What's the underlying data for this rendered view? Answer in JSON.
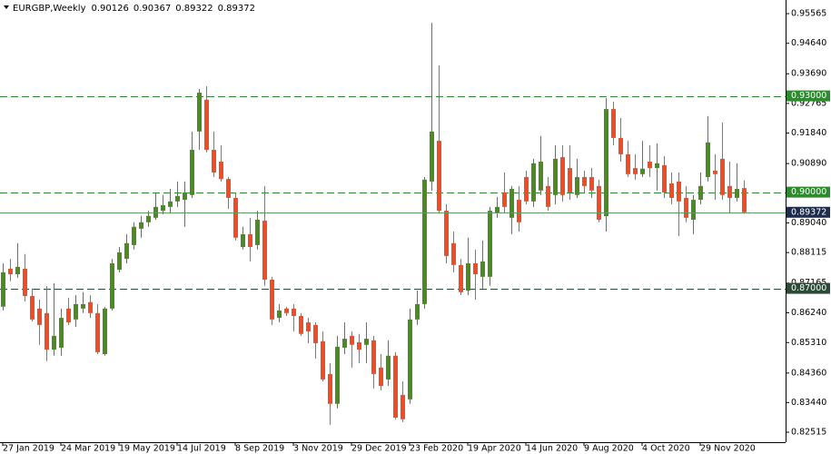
{
  "chart_data": {
    "type": "candlestick",
    "symbol": "EURGBP,Weekly",
    "categories": [
      "27 Jan 2019",
      null,
      null,
      null,
      null,
      null,
      null,
      null,
      "24 Mar 2019",
      null,
      null,
      null,
      null,
      null,
      null,
      null,
      "19 May 2019",
      null,
      null,
      null,
      null,
      null,
      null,
      null,
      "14 Jul 2019",
      null,
      null,
      null,
      null,
      null,
      null,
      null,
      "8 Sep 2019",
      null,
      null,
      null,
      null,
      null,
      null,
      null,
      "3 Nov 2019",
      null,
      null,
      null,
      null,
      null,
      null,
      null,
      "29 Dec 2019",
      null,
      null,
      null,
      null,
      null,
      null,
      null,
      "23 Feb 2020",
      null,
      null,
      null,
      null,
      null,
      null,
      null,
      "19 Apr 2020",
      null,
      null,
      null,
      null,
      null,
      null,
      null,
      "14 Jun 2020",
      null,
      null,
      null,
      null,
      null,
      null,
      null,
      "9 Aug 2020",
      null,
      null,
      null,
      null,
      null,
      null,
      null,
      "4 Oct 2020",
      null,
      null,
      null,
      null,
      null,
      null,
      null,
      "29 Nov 2020",
      null,
      null,
      null,
      null,
      null,
      null
    ],
    "open": [
      0.8643,
      0.8761,
      0.8744,
      0.8761,
      0.8676,
      0.8637,
      0.8623,
      0.8509,
      0.8515,
      0.8637,
      0.8603,
      0.8637,
      0.8657,
      0.8623,
      0.8495,
      0.8637,
      0.8758,
      0.8792,
      0.8835,
      0.8886,
      0.8906,
      0.892,
      0.8942,
      0.8954,
      0.8971,
      0.8976,
      0.8991,
      0.9189,
      0.9288,
      0.9132,
      0.9095,
      0.9041,
      0.8982,
      0.8829,
      0.8869,
      0.8835,
      0.8911,
      0.8727,
      0.8608,
      0.8637,
      0.8637,
      0.8614,
      0.8594,
      0.8586,
      0.8535,
      0.8433,
      0.834,
      0.8515,
      0.8552,
      0.8532,
      0.8524,
      0.8538,
      0.8453,
      0.8416,
      0.849,
      0.8368,
      0.8354,
      0.8603,
      0.8651,
      0.9033,
      0.916,
      0.8942,
      0.8841,
      0.8773,
      0.8693,
      0.8778,
      0.8736,
      0.8736,
      0.8934,
      0.8999,
      0.892,
      0.8976,
      0.9047,
      0.8971,
      0.9005,
      0.9019,
      0.8991,
      0.9109,
      0.9075,
      0.8991,
      0.9047,
      0.9047,
      0.9019,
      0.8925,
      0.9259,
      0.9169,
      0.9118,
      0.9075,
      0.9056,
      0.9095,
      0.9075,
      0.9084,
      0.9027,
      0.9033,
      0.8982,
      0.8914,
      0.8976,
      0.9047,
      0.9067,
      0.9104,
      0.9019,
      0.8982,
      0.90126
    ],
    "high": [
      0.8778,
      0.8792,
      0.8841,
      0.8807,
      0.8699,
      0.8665,
      0.8707,
      0.8716,
      0.8637,
      0.8671,
      0.8679,
      0.8688,
      0.8679,
      0.8651,
      0.8642,
      0.8792,
      0.8829,
      0.8869,
      0.8906,
      0.8926,
      0.8942,
      0.8999,
      0.8991,
      0.901,
      0.9033,
      0.9033,
      0.9189,
      0.9322,
      0.933,
      0.9189,
      0.9146,
      0.9047,
      0.8999,
      0.8892,
      0.892,
      0.8942,
      0.9019,
      0.8736,
      0.8651,
      0.8642,
      0.8651,
      0.8623,
      0.8608,
      0.8594,
      0.8566,
      0.8467,
      0.8552,
      0.8594,
      0.8566,
      0.8558,
      0.8594,
      0.8552,
      0.8495,
      0.8538,
      0.8501,
      0.841,
      0.8637,
      0.8693,
      0.9047,
      0.9528,
      0.9395,
      0.8962,
      0.8877,
      0.8792,
      0.8858,
      0.8821,
      0.8849,
      0.8954,
      0.8985,
      0.9061,
      0.9019,
      0.9019,
      0.9067,
      0.9104,
      0.9175,
      0.9047,
      0.9146,
      0.9146,
      0.9146,
      0.9104,
      0.9067,
      0.9075,
      0.9039,
      0.9293,
      0.9282,
      0.9231,
      0.916,
      0.9118,
      0.916,
      0.9146,
      0.9152,
      0.9112,
      0.9061,
      0.9061,
      0.9019,
      0.8991,
      0.9061,
      0.9237,
      0.9118,
      0.9217,
      0.9095,
      0.909,
      0.90367
    ],
    "low": [
      0.8631,
      0.8722,
      0.8733,
      0.8659,
      0.8597,
      0.8524,
      0.8473,
      0.849,
      0.849,
      0.8586,
      0.858,
      0.8623,
      0.8608,
      0.8495,
      0.849,
      0.8631,
      0.875,
      0.8778,
      0.8821,
      0.8858,
      0.8892,
      0.8914,
      0.8931,
      0.8934,
      0.8954,
      0.8892,
      0.8982,
      0.9132,
      0.9124,
      0.9047,
      0.9033,
      0.8948,
      0.8849,
      0.8821,
      0.8784,
      0.8821,
      0.8708,
      0.8586,
      0.8594,
      0.8614,
      0.8566,
      0.8552,
      0.8529,
      0.8481,
      0.841,
      0.8275,
      0.8326,
      0.8495,
      0.8453,
      0.8467,
      0.8467,
      0.8388,
      0.8382,
      0.8396,
      0.8292,
      0.8283,
      0.834,
      0.8586,
      0.8637,
      0.9005,
      0.8934,
      0.8778,
      0.875,
      0.8679,
      0.8679,
      0.8665,
      0.8699,
      0.8708,
      0.892,
      0.8934,
      0.8869,
      0.8877,
      0.8962,
      0.8954,
      0.8991,
      0.8942,
      0.8962,
      0.8971,
      0.8976,
      0.8982,
      0.8999,
      0.8982,
      0.8906,
      0.8877,
      0.9146,
      0.9095,
      0.9047,
      0.9039,
      0.9047,
      0.9047,
      0.9005,
      0.8982,
      0.8962,
      0.8863,
      0.8906,
      0.8869,
      0.8962,
      0.9033,
      0.8976,
      0.8976,
      0.8934,
      0.8971,
      0.89322
    ],
    "close": [
      0.875,
      0.8744,
      0.8767,
      0.8676,
      0.8603,
      0.8586,
      0.8509,
      0.8552,
      0.8608,
      0.8594,
      0.8651,
      0.8651,
      0.8623,
      0.8501,
      0.8637,
      0.8778,
      0.8812,
      0.8841,
      0.8892,
      0.8906,
      0.8926,
      0.8954,
      0.8959,
      0.8971,
      0.8988,
      0.8999,
      0.9132,
      0.931,
      0.9132,
      0.9061,
      0.9041,
      0.8982,
      0.8858,
      0.8869,
      0.8829,
      0.8914,
      0.8727,
      0.8603,
      0.8631,
      0.8623,
      0.8614,
      0.8558,
      0.8566,
      0.8529,
      0.8416,
      0.834,
      0.8518,
      0.8543,
      0.8524,
      0.8509,
      0.8543,
      0.8433,
      0.8396,
      0.849,
      0.8297,
      0.8292,
      0.8603,
      0.8651,
      0.9039,
      0.9189,
      0.8942,
      0.8801,
      0.8773,
      0.8688,
      0.8778,
      0.8744,
      0.8784,
      0.8942,
      0.8954,
      0.8954,
      0.901,
      0.8906,
      0.8971,
      0.909,
      0.9095,
      0.8954,
      0.9104,
      0.8991,
      0.8999,
      0.9047,
      0.9019,
      0.9005,
      0.8914,
      0.9259,
      0.9169,
      0.9118,
      0.9056,
      0.9056,
      0.9073,
      0.9075,
      0.909,
      0.8999,
      0.8982,
      0.8971,
      0.892,
      0.8976,
      0.9019,
      0.9155,
      0.9056,
      0.8991,
      0.8982,
      0.901,
      0.89372
    ],
    "up_color": "#4e8a24",
    "down_color": "#ee4d26",
    "ylim": [
      0.82204,
      0.95933
    ],
    "yticks": [
      0.95565,
      {
        "value": 0.9464,
        "label": "0.94640"
      },
      {
        "value": 0.9369,
        "label": "0.93690"
      },
      0.92765,
      {
        "value": 0.9184,
        "label": "0.91840"
      },
      {
        "value": 0.9089,
        "label": "0.90890"
      },
      {
        "value": 0.8904,
        "label": "0.89040"
      },
      0.88115,
      0.87165,
      {
        "value": 0.8624,
        "label": "0.86240"
      },
      {
        "value": 0.8531,
        "label": "0.85310"
      },
      {
        "value": 0.8436,
        "label": "0.84360"
      },
      {
        "value": 0.8344,
        "label": "0.83440"
      },
      0.82515
    ],
    "levels": [
      {
        "value": 0.93,
        "label": "0.93000",
        "color": "#2f8a2f"
      },
      {
        "value": 0.9,
        "label": "0.90000",
        "color": "#2f8a2f"
      },
      {
        "value": 0.87,
        "label": "0.87000",
        "color": "#2d4a38"
      }
    ],
    "price_line_color": "#5f9a5f",
    "price_label_color": "#1e2d4e"
  }
}
